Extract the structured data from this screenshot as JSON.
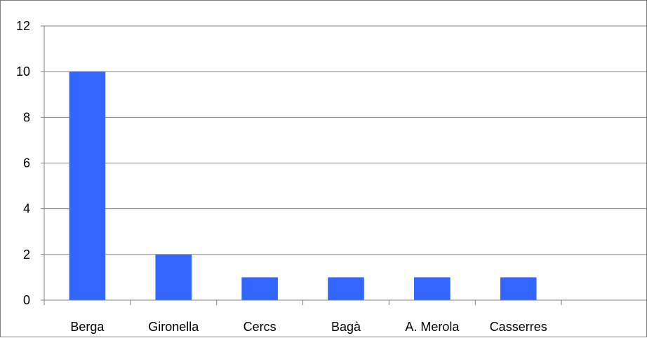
{
  "chart_data": {
    "type": "bar",
    "categories": [
      "Berga",
      "Gironella",
      "Cercs",
      "Bagà",
      "A. Merola",
      "Casserres",
      ""
    ],
    "values": [
      10,
      2,
      1,
      1,
      1,
      1,
      null
    ],
    "title": "",
    "xlabel": "",
    "ylabel": "",
    "ylim": [
      0,
      12
    ],
    "yticks": [
      0,
      2,
      4,
      6,
      8,
      10,
      12
    ],
    "grid": true,
    "legend": "none",
    "bar_color": "#3366ff"
  }
}
